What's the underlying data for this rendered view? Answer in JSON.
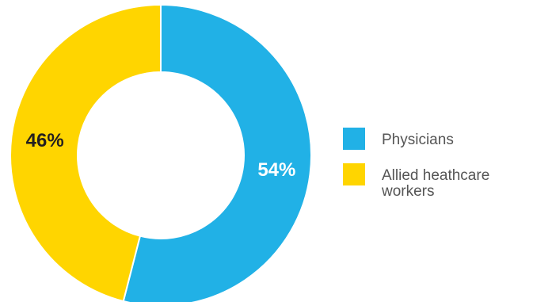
{
  "chart_data": {
    "type": "pie",
    "variant": "donut",
    "title": "",
    "slices": [
      {
        "name": "Physicians",
        "value": 54,
        "label": "54%",
        "color": "#21B1E6",
        "label_color": "#ffffff"
      },
      {
        "name": "Allied heathcare workers",
        "value": 46,
        "label": "46%",
        "color": "#FFD500",
        "label_color": "#231F20"
      }
    ],
    "legend": {
      "placement": "right",
      "items": [
        {
          "lines": [
            "Physicians"
          ],
          "color": "#21B1E6"
        },
        {
          "lines": [
            "Allied heathcare",
            "workers"
          ],
          "color": "#FFD500"
        }
      ]
    }
  }
}
